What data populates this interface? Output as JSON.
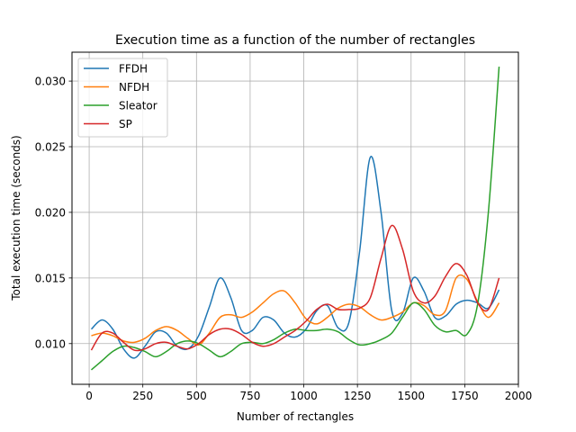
{
  "chart_data": {
    "type": "line",
    "title": "Execution time as a function of the number of rectangles",
    "xlabel": "Number of rectangles",
    "ylabel": "Total execution time (seconds)",
    "xlim": [
      -80,
      2000
    ],
    "ylim": [
      0.0069,
      0.0322
    ],
    "xticks": [
      0,
      250,
      500,
      750,
      1000,
      1250,
      1500,
      1750,
      2000
    ],
    "xtick_labels": [
      "0",
      "250",
      "500",
      "750",
      "1000",
      "1250",
      "1500",
      "1750",
      "2000"
    ],
    "yticks": [
      0.01,
      0.015,
      0.02,
      0.025,
      0.03
    ],
    "ytick_labels": [
      "0.010",
      "0.015",
      "0.020",
      "0.025",
      "0.030"
    ],
    "grid": true,
    "legend_position": "upper-left",
    "series": [
      {
        "name": "FFDH",
        "color": "#1f77b4",
        "points": [
          [
            10,
            0.0111
          ],
          [
            60,
            0.0118
          ],
          [
            110,
            0.0111
          ],
          [
            160,
            0.0096
          ],
          [
            210,
            0.0089
          ],
          [
            260,
            0.0098
          ],
          [
            310,
            0.0109
          ],
          [
            360,
            0.0108
          ],
          [
            410,
            0.0098
          ],
          [
            460,
            0.0096
          ],
          [
            510,
            0.0106
          ],
          [
            560,
            0.0128
          ],
          [
            610,
            0.015
          ],
          [
            660,
            0.0135
          ],
          [
            710,
            0.011
          ],
          [
            760,
            0.011
          ],
          [
            810,
            0.012
          ],
          [
            860,
            0.0118
          ],
          [
            910,
            0.0108
          ],
          [
            960,
            0.0105
          ],
          [
            1010,
            0.0111
          ],
          [
            1060,
            0.0125
          ],
          [
            1110,
            0.0129
          ],
          [
            1160,
            0.0112
          ],
          [
            1210,
            0.0116
          ],
          [
            1260,
            0.017
          ],
          [
            1310,
            0.0242
          ],
          [
            1360,
            0.02
          ],
          [
            1410,
            0.0125
          ],
          [
            1460,
            0.0123
          ],
          [
            1510,
            0.015
          ],
          [
            1560,
            0.014
          ],
          [
            1610,
            0.012
          ],
          [
            1660,
            0.0121
          ],
          [
            1710,
            0.013
          ],
          [
            1760,
            0.0133
          ],
          [
            1810,
            0.0131
          ],
          [
            1860,
            0.0127
          ],
          [
            1910,
            0.0141
          ]
        ]
      },
      {
        "name": "NFDH",
        "color": "#ff7f0e",
        "points": [
          [
            10,
            0.0106
          ],
          [
            60,
            0.0108
          ],
          [
            110,
            0.0106
          ],
          [
            160,
            0.0102
          ],
          [
            210,
            0.0101
          ],
          [
            260,
            0.0104
          ],
          [
            310,
            0.011
          ],
          [
            360,
            0.0113
          ],
          [
            410,
            0.011
          ],
          [
            460,
            0.0104
          ],
          [
            510,
            0.0099
          ],
          [
            560,
            0.0108
          ],
          [
            610,
            0.012
          ],
          [
            660,
            0.0122
          ],
          [
            710,
            0.012
          ],
          [
            760,
            0.0124
          ],
          [
            810,
            0.0131
          ],
          [
            860,
            0.0138
          ],
          [
            910,
            0.014
          ],
          [
            960,
            0.0131
          ],
          [
            1010,
            0.0119
          ],
          [
            1060,
            0.0115
          ],
          [
            1110,
            0.012
          ],
          [
            1160,
            0.0127
          ],
          [
            1210,
            0.013
          ],
          [
            1260,
            0.0128
          ],
          [
            1310,
            0.0122
          ],
          [
            1360,
            0.0118
          ],
          [
            1410,
            0.012
          ],
          [
            1460,
            0.0124
          ],
          [
            1510,
            0.0131
          ],
          [
            1560,
            0.0129
          ],
          [
            1610,
            0.0122
          ],
          [
            1660,
            0.0125
          ],
          [
            1710,
            0.015
          ],
          [
            1760,
            0.0149
          ],
          [
            1810,
            0.0132
          ],
          [
            1860,
            0.012
          ],
          [
            1910,
            0.0131
          ]
        ]
      },
      {
        "name": "Sleator",
        "color": "#2ca02c",
        "points": [
          [
            10,
            0.008
          ],
          [
            60,
            0.0087
          ],
          [
            110,
            0.0094
          ],
          [
            160,
            0.0098
          ],
          [
            210,
            0.0097
          ],
          [
            260,
            0.0094
          ],
          [
            310,
            0.009
          ],
          [
            360,
            0.0094
          ],
          [
            410,
            0.01
          ],
          [
            460,
            0.0102
          ],
          [
            510,
            0.01
          ],
          [
            560,
            0.0095
          ],
          [
            610,
            0.009
          ],
          [
            660,
            0.0094
          ],
          [
            710,
            0.01
          ],
          [
            760,
            0.0101
          ],
          [
            810,
            0.01
          ],
          [
            860,
            0.0103
          ],
          [
            910,
            0.0108
          ],
          [
            960,
            0.0111
          ],
          [
            1010,
            0.011
          ],
          [
            1060,
            0.011
          ],
          [
            1110,
            0.0111
          ],
          [
            1160,
            0.0109
          ],
          [
            1210,
            0.0103
          ],
          [
            1260,
            0.0099
          ],
          [
            1310,
            0.01
          ],
          [
            1360,
            0.0103
          ],
          [
            1410,
            0.0108
          ],
          [
            1460,
            0.012
          ],
          [
            1510,
            0.0131
          ],
          [
            1560,
            0.0126
          ],
          [
            1610,
            0.0114
          ],
          [
            1660,
            0.0109
          ],
          [
            1710,
            0.011
          ],
          [
            1760,
            0.0107
          ],
          [
            1810,
            0.013
          ],
          [
            1860,
            0.02
          ],
          [
            1910,
            0.0311
          ]
        ]
      },
      {
        "name": "SP",
        "color": "#d62728",
        "points": [
          [
            10,
            0.0095
          ],
          [
            60,
            0.0108
          ],
          [
            110,
            0.0108
          ],
          [
            160,
            0.0101
          ],
          [
            210,
            0.0095
          ],
          [
            260,
            0.0096
          ],
          [
            310,
            0.01
          ],
          [
            360,
            0.0101
          ],
          [
            410,
            0.0098
          ],
          [
            460,
            0.0096
          ],
          [
            510,
            0.01
          ],
          [
            560,
            0.0107
          ],
          [
            610,
            0.0111
          ],
          [
            660,
            0.0111
          ],
          [
            710,
            0.0107
          ],
          [
            760,
            0.0101
          ],
          [
            810,
            0.0098
          ],
          [
            860,
            0.01
          ],
          [
            910,
            0.0105
          ],
          [
            960,
            0.011
          ],
          [
            1010,
            0.0117
          ],
          [
            1060,
            0.0126
          ],
          [
            1110,
            0.013
          ],
          [
            1160,
            0.0126
          ],
          [
            1210,
            0.0126
          ],
          [
            1260,
            0.0127
          ],
          [
            1310,
            0.0135
          ],
          [
            1360,
            0.0165
          ],
          [
            1410,
            0.019
          ],
          [
            1460,
            0.0172
          ],
          [
            1510,
            0.014
          ],
          [
            1560,
            0.0131
          ],
          [
            1610,
            0.0136
          ],
          [
            1660,
            0.0151
          ],
          [
            1710,
            0.0161
          ],
          [
            1760,
            0.0152
          ],
          [
            1810,
            0.0131
          ],
          [
            1860,
            0.0126
          ],
          [
            1910,
            0.015
          ]
        ]
      }
    ]
  }
}
